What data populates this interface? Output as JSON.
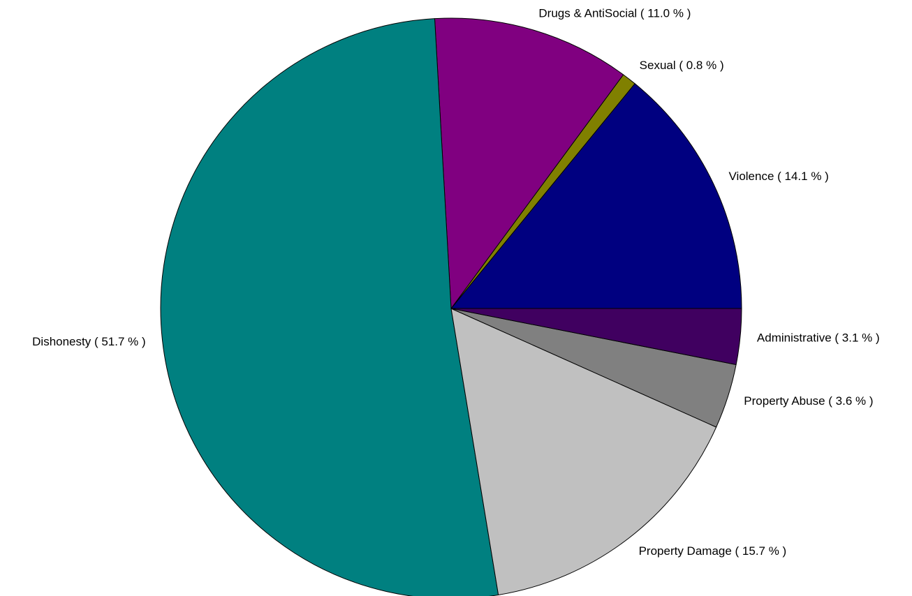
{
  "chart_data": {
    "type": "pie",
    "start_angle_deg": 0,
    "direction": "counterclockwise",
    "slices": [
      {
        "name": "Violence",
        "value": 14.1,
        "label": "Violence ( 14.1 % )",
        "color": "#000080"
      },
      {
        "name": "Sexual",
        "value": 0.8,
        "label": "Sexual ( 0.8 % )",
        "color": "#808000"
      },
      {
        "name": "Drugs & AntiSocial",
        "value": 11.0,
        "label": "Drugs & AntiSocial ( 11.0 % )",
        "color": "#800080"
      },
      {
        "name": "Dishonesty",
        "value": 51.7,
        "label": "Dishonesty ( 51.7 % )",
        "color": "#008080"
      },
      {
        "name": "Property Damage",
        "value": 15.7,
        "label": "Property Damage ( 15.7 % )",
        "color": "#C0C0C0"
      },
      {
        "name": "Property Abuse",
        "value": 3.6,
        "label": "Property Abuse ( 3.6 % )",
        "color": "#808080"
      },
      {
        "name": "Administrative",
        "value": 3.1,
        "label": "Administrative ( 3.1 % )",
        "color": "#400060"
      }
    ]
  }
}
